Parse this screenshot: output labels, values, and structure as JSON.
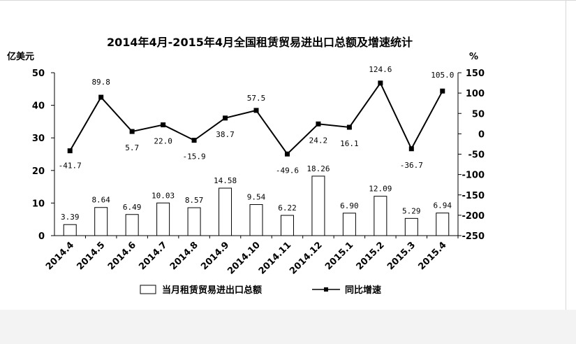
{
  "chart_data": {
    "type": "bar+line",
    "title": "2014年4月-2015年4月全国租赁贸易进出口总额及增速统计",
    "y_left_unit": "亿美元",
    "y_right_unit": "%",
    "y_left_ticks": [
      "50",
      "40",
      "30",
      "20",
      "10",
      "0"
    ],
    "y_right_ticks": [
      "150",
      "100",
      "50",
      "0",
      "-50",
      "-100",
      "-150",
      "-200",
      "-250"
    ],
    "ylim_left": [
      0,
      50
    ],
    "ylim_right": [
      -250,
      150
    ],
    "categories": [
      "2014.4",
      "2014.5",
      "2014.6",
      "2014.7",
      "2014.8",
      "2014.9",
      "2014.10",
      "2014.11",
      "2014.12",
      "2015.1",
      "2015.2",
      "2015.3",
      "2015.4"
    ],
    "bars": {
      "name": "当月租赁贸易进出口总额",
      "values": [
        3.39,
        8.64,
        6.49,
        10.03,
        8.57,
        14.58,
        9.54,
        6.22,
        18.26,
        6.9,
        12.09,
        5.29,
        6.94
      ],
      "labels": [
        "3.39",
        "8.64",
        "6.49",
        "10.03",
        "8.57",
        "14.58",
        "9.54",
        "6.22",
        "18.26",
        "6.90",
        "12.09",
        "5.29",
        "6.94"
      ]
    },
    "line": {
      "name": "同比增速",
      "values": [
        -41.7,
        89.8,
        5.7,
        22.0,
        -15.9,
        38.7,
        57.5,
        -49.6,
        24.2,
        16.1,
        124.6,
        -36.7,
        105.0
      ],
      "labels": [
        "-41.7",
        "89.8",
        "5.7",
        "22.0",
        "-15.9",
        "38.7",
        "57.5",
        "-49.6",
        "24.2",
        "16.1",
        "124.6",
        "-36.7",
        "105.0"
      ]
    },
    "legend_position": "bottom-center",
    "grid": false
  },
  "colors": {
    "bar_fill": "#ffffff",
    "bar_stroke": "#000000",
    "line": "#000000",
    "page_band": "#f3f3f3"
  }
}
